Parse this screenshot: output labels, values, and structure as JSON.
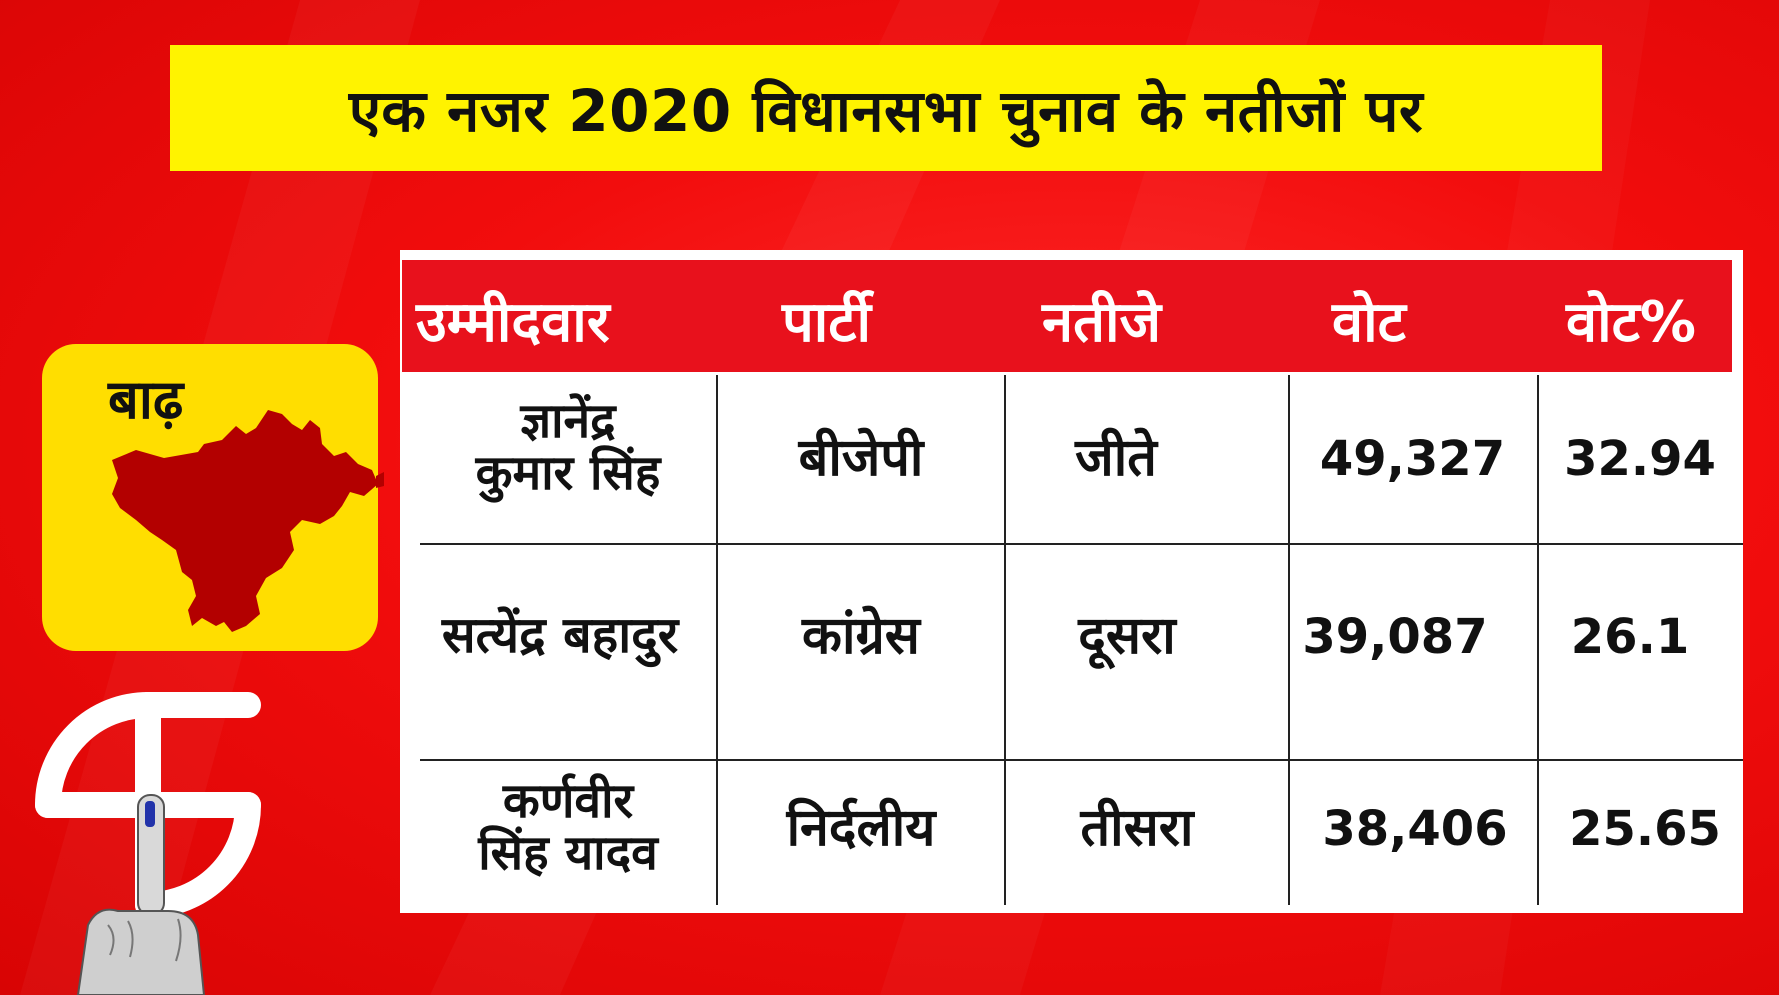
{
  "title": "एक नजर 2020 विधानसभा चुनाव के नतीजों पर",
  "constituency": "बाढ़",
  "table": {
    "headers": [
      "उम्मीदवार",
      "पार्टी",
      "नतीजे",
      "वोट",
      "वोट%"
    ],
    "rows": [
      {
        "candidate_line1": "ज्ञानेंद्र",
        "candidate_line2": "कुमार सिंह",
        "party": "बीजेपी",
        "result": "जीते",
        "votes": "49,327",
        "vote_pct": "32.94"
      },
      {
        "candidate_line1": "सत्येंद्र बहादुर",
        "candidate_line2": "",
        "party": "कांग्रेस",
        "result": "दूसरा",
        "votes": "39,087",
        "vote_pct": "26.1"
      },
      {
        "candidate_line1": "कर्णवीर",
        "candidate_line2": "सिंह यादव",
        "party": "निर्दलीय",
        "result": "तीसरा",
        "votes": "38,406",
        "vote_pct": "25.65"
      }
    ]
  },
  "colors": {
    "background": "#f20d0d",
    "title_bar": "#fff300",
    "header_row": "#e8111c",
    "map_fill": "#b30000",
    "place_card": "#ffde00"
  },
  "icons": [
    "bihar-map-icon",
    "election-commission-logo-icon"
  ]
}
